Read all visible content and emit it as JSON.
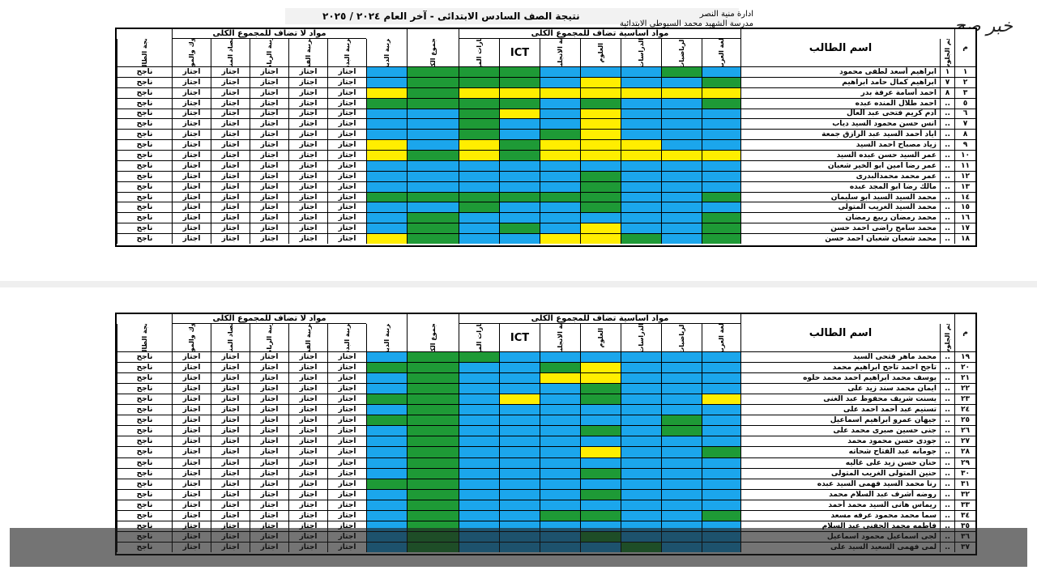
{
  "header": {
    "admin_label": "ادارة  منية النصر",
    "school_label": "مدرسة  الشهيد محمد السيوطى الابتدائية",
    "title": "نتيجة الصف السادس الابتدائى - آخر العام  ٢٠٢٤ / ٢٠٢٥"
  },
  "logo_text": "خبر صح",
  "columns": {
    "num": "م",
    "seat": "رقم الجلوس",
    "name": "اسم الطالب",
    "group_added": "مواد اساسية تضاف للمجموع الكلى",
    "group_not_added": "مواد لا تضاف للمجموع الكلى",
    "arabic": "اللغة العربية",
    "math": "الرياضيات",
    "social": "الدراسات",
    "science": "العلوم",
    "english": "اللغة الانجليزية",
    "ict": "ICT",
    "art": "المهارات المهنية",
    "total": "المجموع الكلى",
    "religion": "التربية الدينية",
    "pe": "التربية البدنية",
    "fine": "التربية الفنية",
    "sports": "التربية الرياضية",
    "activity": "الاقتصاد المنزلى",
    "behavior": "السلوك والمواظبة",
    "result": "نتيجة الطالب"
  },
  "values": {
    "pass": "اجتاز",
    "success": "ناجح"
  },
  "colors": {
    "green": "#1e9a36",
    "blue": "#1ba6ec",
    "yellow": "#ffee00"
  },
  "table1": {
    "rows": [
      {
        "num": "١",
        "seat": "١",
        "name": "ابراهيم أسعد لطفى محمود",
        "c": "bgbbbggg"
      },
      {
        "num": "٢",
        "seat": "٧",
        "name": "ابراهيم كمال حامد ابراهيم",
        "c": "gbbybggg"
      },
      {
        "num": "٣",
        "seat": "٨",
        "name": "احمد أسامة عرفة بدر",
        "c": "yyyyyyyg"
      },
      {
        "num": "٥",
        "seat": "..",
        "name": "احمد طلال المنده عبده",
        "c": "gbbgbggg"
      },
      {
        "num": "٦",
        "seat": "..",
        "name": "آدم كريم فتحى عبد العال",
        "c": "bbbybygb"
      },
      {
        "num": "٧",
        "seat": "..",
        "name": "انس حسن محمود السيد دياب",
        "c": "bbbybbgb"
      },
      {
        "num": "٨",
        "seat": "..",
        "name": "اياد أحمد السيد عبد الرازق جمعة",
        "c": "bbbygbgb"
      },
      {
        "num": "٩",
        "seat": "..",
        "name": "زياد مصباح احمد السيد",
        "c": "bbyyygyb"
      },
      {
        "num": "١٠",
        "seat": "..",
        "name": "عمر السيد حسن عبده السيد",
        "c": "yyyyygyg"
      },
      {
        "num": "١١",
        "seat": "..",
        "name": "عمر رضا امين ابو الخير شعبان",
        "c": "bbbbbbbb"
      },
      {
        "num": "١٢",
        "seat": "..",
        "name": "عمر محمد محمدالبدرى",
        "c": "bbbgbbbb"
      },
      {
        "num": "١٣",
        "seat": "..",
        "name": "مالك رضا ابو المجد عبده",
        "c": "bbbgbbbb"
      },
      {
        "num": "١٤",
        "seat": "..",
        "name": "محمد السيد السيد ابو سليمان",
        "c": "gbbggggg"
      },
      {
        "num": "١٥",
        "seat": "..",
        "name": "محمد السيد الغريب المتولى",
        "c": "bbbgbbgb"
      },
      {
        "num": "١٦",
        "seat": "..",
        "name": "محمد رمضان ربيع رمضان",
        "c": "gbbbbbbg"
      },
      {
        "num": "١٧",
        "seat": "..",
        "name": "محمد سامح راضى احمد حسن",
        "c": "gbbybgbg"
      },
      {
        "num": "١٨",
        "seat": "..",
        "name": "محمد شعبان شعبان احمد حسن",
        "c": "gbgyybbg"
      }
    ]
  },
  "table2": {
    "rows": [
      {
        "num": "١٩",
        "seat": "..",
        "name": "محمد ماهر فتحى السيد",
        "c": "bbbbbbgg"
      },
      {
        "num": "٢٠",
        "seat": "..",
        "name": "تاجح احمد تاجح ابراهيم محمد",
        "c": "bbbygbbg"
      },
      {
        "num": "٢١",
        "seat": "..",
        "name": "يوسف محمد ابراهيم احمد محمد حلوه",
        "c": "bbbyybbg"
      },
      {
        "num": "٢٢",
        "seat": "..",
        "name": "ايمان محمد سند زيد على",
        "c": "bbbgbbbg"
      },
      {
        "num": "٢٣",
        "seat": "..",
        "name": "يسنت شريف محفوظ عبد الغنى",
        "c": "ybbgbybg"
      },
      {
        "num": "٢٤",
        "seat": "..",
        "name": "تسنيم عبد أحمد احمد على",
        "c": "bbbbbbbg"
      },
      {
        "num": "٢٥",
        "seat": "..",
        "name": "جيهان عمرو ابراهيم اسماعيل",
        "c": "bgbbbbbg"
      },
      {
        "num": "٢٦",
        "seat": "..",
        "name": "جنى حسين صبرى محمد على",
        "c": "bgbgbbbg"
      },
      {
        "num": "٢٧",
        "seat": "..",
        "name": "جودى حسن محمود محمد",
        "c": "bbbbbbbg"
      },
      {
        "num": "٢٨",
        "seat": "..",
        "name": "جومانه عبد الفتاح شحاته",
        "c": "gbbybbbg"
      },
      {
        "num": "٢٩",
        "seat": "..",
        "name": "حنان حسن زيد على غاليه",
        "c": "bbbbbbbg"
      },
      {
        "num": "٣٠",
        "seat": "..",
        "name": "حنين المتولى الغريب المتولى",
        "c": "bbbgbbbg"
      },
      {
        "num": "٣١",
        "seat": "..",
        "name": "رنا محمد السيد فهمى السيد عبده",
        "c": "bbbbbbbg"
      },
      {
        "num": "٣٢",
        "seat": "..",
        "name": "روضه أشرف عبد السلام محمد",
        "c": "bbbgbbbg"
      },
      {
        "num": "٣٣",
        "seat": "..",
        "name": "ريماس هانى السيد محمد أحمد",
        "c": "bbbbbbbg"
      },
      {
        "num": "٣٤",
        "seat": "..",
        "name": "سما محمد محمود عرفه مسعد",
        "c": "gbbggbbg"
      },
      {
        "num": "٣٥",
        "seat": "..",
        "name": "فاطمه محمد الحفنى عبد السلام",
        "c": "bbbbbbbg"
      },
      {
        "num": "٣٦",
        "seat": "..",
        "name": "لجى اسماعيل محمود اسماعيل",
        "c": "bbbgbbbg"
      },
      {
        "num": "٣٧",
        "seat": "..",
        "name": "لمى فهمى السعيد السيد على",
        "c": "bbgbbbbg"
      }
    ]
  }
}
